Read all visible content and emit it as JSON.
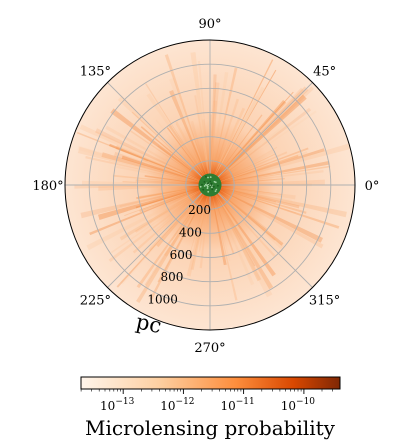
{
  "chart_data": {
    "type": "heatmap",
    "projection": "polar",
    "angle_ticks": [
      {
        "deg": 0,
        "label": "0°"
      },
      {
        "deg": 45,
        "label": "45°"
      },
      {
        "deg": 90,
        "label": "90°"
      },
      {
        "deg": 135,
        "label": "135°"
      },
      {
        "deg": 180,
        "label": "180°"
      },
      {
        "deg": 225,
        "label": "225°"
      },
      {
        "deg": 270,
        "label": "270°"
      },
      {
        "deg": 315,
        "label": "315°"
      }
    ],
    "radial_ticks": [
      {
        "value": 200,
        "label": "200"
      },
      {
        "value": 400,
        "label": "400"
      },
      {
        "value": 600,
        "label": "600"
      },
      {
        "value": 800,
        "label": "800"
      },
      {
        "value": 1000,
        "label": "1000"
      }
    ],
    "rlim": [
      0,
      1200
    ],
    "radial_unit": "pc",
    "grid": true,
    "center_marker": {
      "radius": 50,
      "color": "#2e7d32"
    },
    "colorbar": {
      "label": "Microlensing probability",
      "scale": "log",
      "range": [
        -13.7,
        -9.4
      ],
      "ticks": [
        {
          "exp": -13,
          "label": "10",
          "sup": "−13"
        },
        {
          "exp": -12,
          "label": "10",
          "sup": "−12"
        },
        {
          "exp": -11,
          "label": "10",
          "sup": "−11"
        },
        {
          "exp": -10,
          "label": "10",
          "sup": "−10"
        }
      ],
      "colormap": [
        "#fff5eb",
        "#fdd0a2",
        "#fd8d3c",
        "#d94801",
        "#7f2704"
      ]
    }
  }
}
